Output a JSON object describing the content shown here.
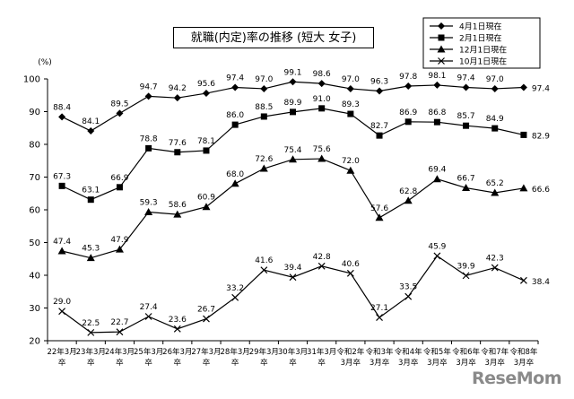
{
  "chart_data": {
    "type": "line",
    "title": "就職(内定)率の推移 (短大 女子)",
    "ylabel": "(%)",
    "ylim": [
      20,
      100
    ],
    "yticks": [
      20,
      30,
      40,
      50,
      60,
      70,
      80,
      90,
      100
    ],
    "grid": false,
    "legend_position": "top-right",
    "categories": [
      [
        "22年3月",
        "卒"
      ],
      [
        "23年3月",
        "卒"
      ],
      [
        "24年3月",
        "卒"
      ],
      [
        "25年3月",
        "卒"
      ],
      [
        "26年3月",
        "卒"
      ],
      [
        "27年3月",
        "卒"
      ],
      [
        "28年3月",
        "卒"
      ],
      [
        "29年3月",
        "卒"
      ],
      [
        "30年3月",
        "卒"
      ],
      [
        "31年3月",
        "卒"
      ],
      [
        "令和2年",
        "3月卒"
      ],
      [
        "令和3年",
        "3月卒"
      ],
      [
        "令和4年",
        "3月卒"
      ],
      [
        "令和5年",
        "3月卒"
      ],
      [
        "令和6年",
        "3月卒"
      ],
      [
        "令和7年",
        "3月卒"
      ],
      [
        "令和8年",
        "3月卒"
      ]
    ],
    "series": [
      {
        "name": "4月1日現在",
        "marker": "diamond",
        "values": [
          88.4,
          84.1,
          89.5,
          94.7,
          94.2,
          95.6,
          97.4,
          97.0,
          99.1,
          98.6,
          97.0,
          96.3,
          97.8,
          98.1,
          97.4,
          97.0,
          97.4
        ]
      },
      {
        "name": "2月1日現在",
        "marker": "square",
        "values": [
          67.3,
          63.1,
          66.9,
          78.8,
          77.6,
          78.1,
          86.0,
          88.5,
          89.9,
          91.0,
          89.3,
          82.7,
          86.9,
          86.8,
          85.7,
          84.9,
          82.9
        ]
      },
      {
        "name": "12月1日現在",
        "marker": "triangle",
        "values": [
          47.4,
          45.3,
          47.9,
          59.3,
          58.6,
          60.9,
          68.0,
          72.6,
          75.4,
          75.6,
          72.0,
          57.6,
          62.8,
          69.4,
          66.7,
          65.2,
          66.6
        ]
      },
      {
        "name": "10月1日現在",
        "marker": "cross",
        "values": [
          29.0,
          22.5,
          22.7,
          27.4,
          23.6,
          26.7,
          33.2,
          41.6,
          39.4,
          42.8,
          40.6,
          27.1,
          33.5,
          45.9,
          39.9,
          42.3,
          38.4
        ]
      }
    ]
  },
  "watermark": "ReseMom",
  "colors": {
    "line": "#000000",
    "background": "#ffffff"
  }
}
